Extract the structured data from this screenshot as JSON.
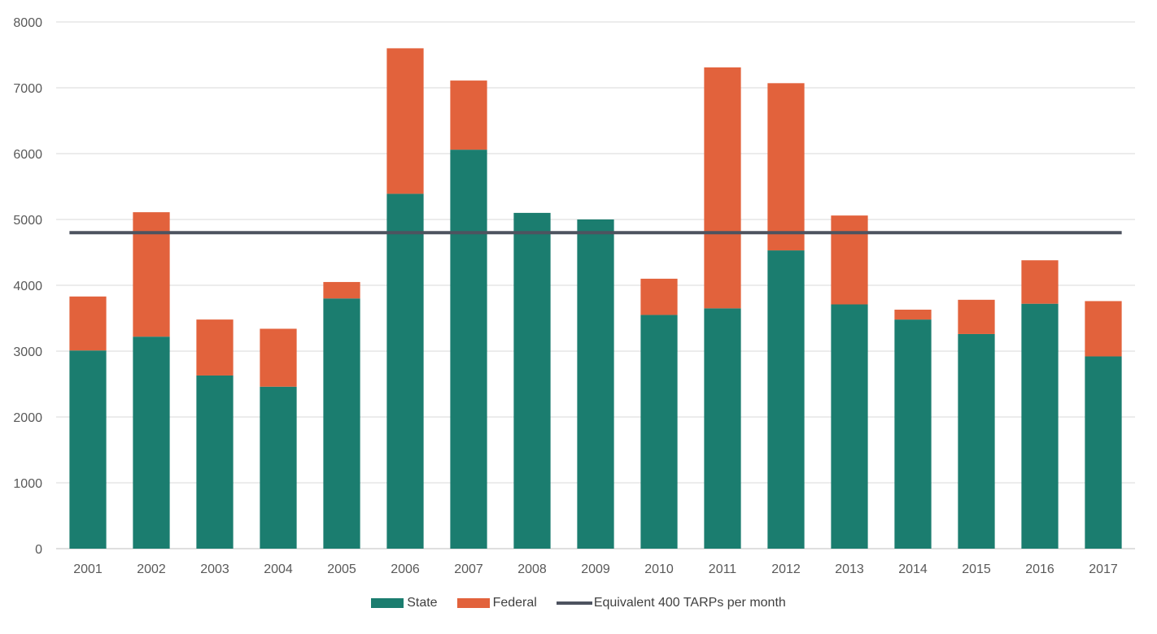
{
  "chart_data": {
    "type": "bar",
    "stacked": true,
    "title": "",
    "xlabel": "",
    "ylabel": "",
    "ylim": [
      0,
      8000
    ],
    "yticks": [
      0,
      1000,
      2000,
      3000,
      4000,
      5000,
      6000,
      7000,
      8000
    ],
    "grid": true,
    "legend_position": "bottom",
    "categories": [
      "2001",
      "2002",
      "2003",
      "2004",
      "2005",
      "2006",
      "2007",
      "2008",
      "2009",
      "2010",
      "2011",
      "2012",
      "2013",
      "2014",
      "2015",
      "2016",
      "2017"
    ],
    "series": [
      {
        "name": "State",
        "color": "#1b7d6f",
        "values": [
          3010,
          3220,
          2630,
          2460,
          3800,
          5390,
          6060,
          5100,
          5000,
          3550,
          3650,
          4530,
          3710,
          3480,
          3260,
          3720,
          2920
        ]
      },
      {
        "name": "Federal",
        "color": "#e2623c",
        "values": [
          820,
          1890,
          850,
          880,
          250,
          2210,
          1050,
          0,
          0,
          550,
          3660,
          2540,
          1350,
          150,
          520,
          660,
          840
        ]
      }
    ],
    "reference_line": {
      "name": "Equivalent 400 TARPs per month",
      "value": 4800,
      "color": "#4d535f"
    }
  }
}
